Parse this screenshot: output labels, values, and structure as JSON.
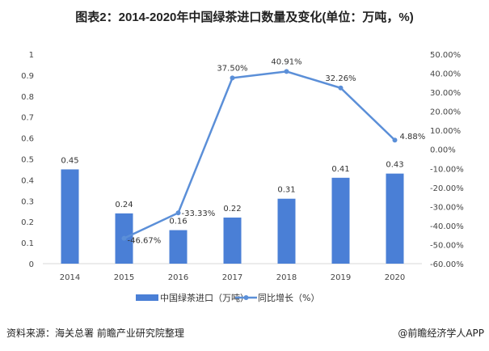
{
  "title": "图表2：2014-2020年中国绿茶进口数量及变化(单位：万吨，%)",
  "source": "资料来源：海关总署 前瞻产业研究院整理",
  "credit": "@前瞻经济学人APP",
  "chart_data": {
    "type": "bar+line",
    "categories": [
      "2014",
      "2015",
      "2016",
      "2017",
      "2018",
      "2019",
      "2020"
    ],
    "series": [
      {
        "name": "中国绿茶进口（万吨）",
        "type": "bar",
        "axis": "left",
        "values": [
          0.45,
          0.24,
          0.16,
          0.22,
          0.31,
          0.41,
          0.43
        ],
        "labels": [
          "0.45",
          "0.24",
          "0.16",
          "0.22",
          "0.31",
          "0.41",
          "0.43"
        ],
        "color": "#4a7fd6"
      },
      {
        "name": "同比增长（%）",
        "type": "line",
        "axis": "right",
        "values": [
          null,
          -46.67,
          -33.33,
          37.5,
          40.91,
          32.26,
          4.88
        ],
        "labels": [
          "",
          "-46.67%",
          "-33.33%",
          "37.50%",
          "40.91%",
          "32.26%",
          "4.88%"
        ],
        "color": "#5b8fd8"
      }
    ],
    "left_axis": {
      "ylim": [
        0,
        1
      ],
      "ticks": [
        "0",
        "0.1",
        "0.2",
        "0.3",
        "0.4",
        "0.5",
        "0.6",
        "0.7",
        "0.8",
        "0.9",
        "1"
      ]
    },
    "right_axis": {
      "ylim": [
        -60,
        50
      ],
      "ticks": [
        "-60.00%",
        "-50.00%",
        "-40.00%",
        "-30.00%",
        "-20.00%",
        "-10.00%",
        "0.00%",
        "10.00%",
        "20.00%",
        "30.00%",
        "40.00%",
        "50.00%"
      ]
    },
    "grid": false,
    "legend": "bottom"
  }
}
